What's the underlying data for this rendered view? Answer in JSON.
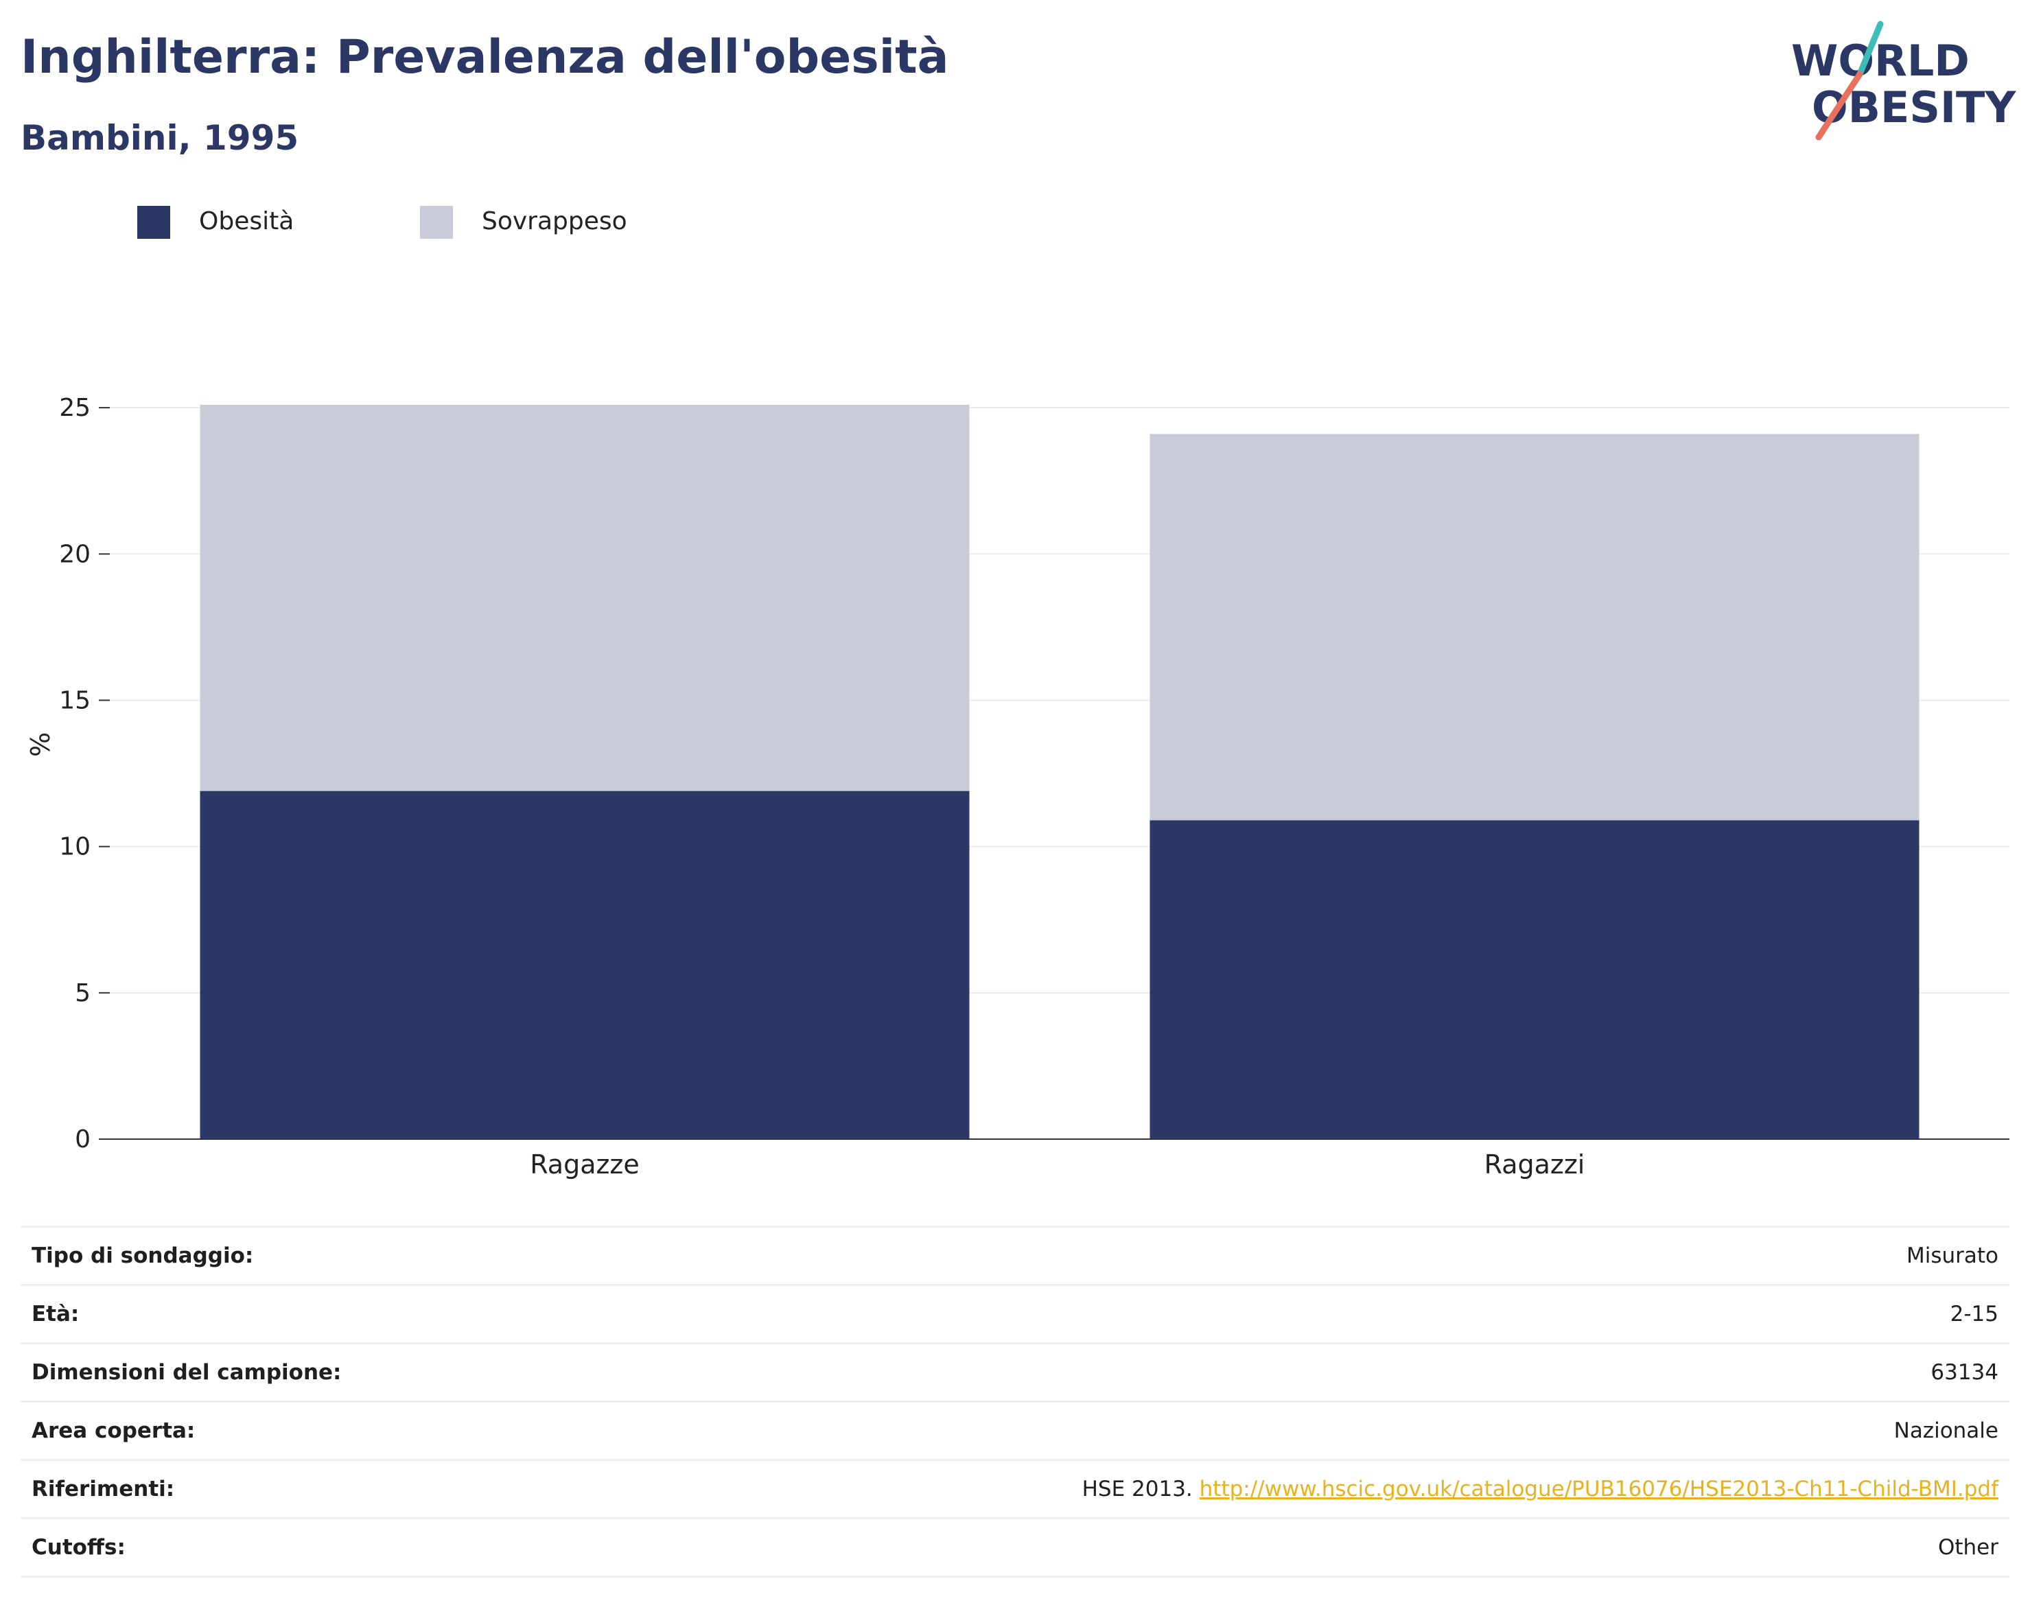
{
  "header": {
    "title": "Inghilterra: Prevalenza dell'obesità",
    "subtitle": "Bambini, 1995"
  },
  "logo": {
    "line1": "WORLD",
    "line2": "OBESITY",
    "colors": {
      "text": "#2b3765",
      "slash_top": "#3dbcb8",
      "slash_bottom": "#e8705e"
    }
  },
  "legend": {
    "items": [
      {
        "label": "Obesità",
        "color": "#2b3765"
      },
      {
        "label": "Sovrappeso",
        "color": "#c9ccd8"
      }
    ]
  },
  "chart_data": {
    "type": "bar",
    "stacked": true,
    "categories": [
      "Ragazze",
      "Ragazzi"
    ],
    "series": [
      {
        "name": "Obesità",
        "values": [
          11.9,
          10.9
        ],
        "color": "#2b3765"
      },
      {
        "name": "Sovrappeso",
        "values": [
          13.2,
          13.2
        ],
        "color": "#c9ccd8"
      }
    ],
    "title": "Inghilterra: Prevalenza dell'obesità",
    "subtitle": "Bambini, 1995",
    "xlabel": "",
    "ylabel": "%",
    "ylim": [
      0,
      25
    ],
    "yticks": [
      0,
      5,
      10,
      15,
      20,
      25
    ],
    "grid": true,
    "legend_position": "top-left"
  },
  "info": {
    "rows": [
      {
        "key": "Tipo di sondaggio:",
        "value": "Misurato"
      },
      {
        "key": "Età:",
        "value": "2-15"
      },
      {
        "key": "Dimensioni del campione:",
        "value": "63134"
      },
      {
        "key": "Area coperta:",
        "value": "Nazionale"
      },
      {
        "key": "Riferimenti:",
        "value": "HSE 2013.",
        "link": "http://www.hscic.gov.uk/catalogue/PUB16076/HSE2013-Ch11-Child-BMI.pdf"
      },
      {
        "key": "Cutoffs:",
        "value": "Other"
      }
    ]
  }
}
